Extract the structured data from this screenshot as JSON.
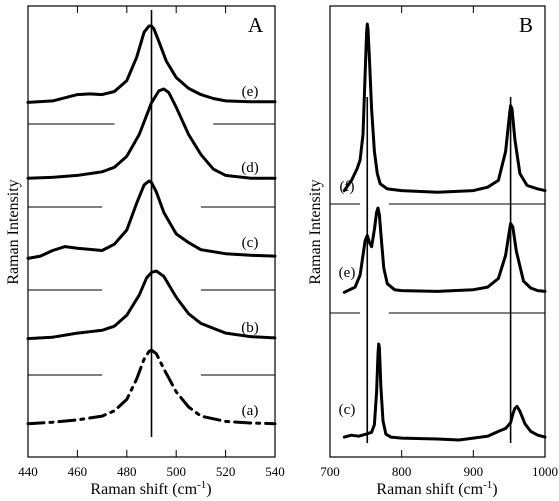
{
  "chart_data": [
    {
      "type": "line",
      "panel_label": "A",
      "xlabel": "Raman shift  (cm",
      "xlabel_sup": "-1",
      "xlabel_close": ")",
      "ylabel": "Raman Intensity",
      "xlim": [
        440,
        540
      ],
      "xticks": [
        440,
        460,
        480,
        500,
        520,
        540
      ],
      "marker_x": 490,
      "baselines": [
        {
          "segments": [
            [
              440,
              475
            ],
            [
              515,
              540
            ]
          ]
        },
        {
          "segments": [
            [
              440,
              470
            ],
            [
              510,
              540
            ]
          ]
        },
        {
          "segments": [
            [
              440,
              470
            ],
            [
              510,
              540
            ]
          ]
        },
        {
          "segments": [
            [
              440,
              470
            ],
            [
              510,
              540
            ]
          ]
        }
      ],
      "series": [
        {
          "name": "(e)",
          "style": "solid",
          "x": [
            440,
            450,
            460,
            465,
            470,
            475,
            480,
            484,
            487,
            489,
            490,
            491,
            493,
            496,
            500,
            505,
            510,
            515,
            520,
            530,
            540
          ],
          "y": [
            0.02,
            0.04,
            0.12,
            0.13,
            0.12,
            0.16,
            0.3,
            0.6,
            0.92,
            1.0,
            1.0,
            0.96,
            0.8,
            0.55,
            0.34,
            0.2,
            0.12,
            0.07,
            0.04,
            0.03,
            0.03
          ]
        },
        {
          "name": "(d)",
          "style": "dotted",
          "x": [
            440,
            450,
            460,
            470,
            475,
            480,
            485,
            490,
            493,
            495,
            497,
            500,
            505,
            510,
            515,
            520,
            530,
            540
          ],
          "y": [
            0.02,
            0.03,
            0.05,
            0.09,
            0.14,
            0.26,
            0.5,
            0.85,
            0.98,
            1.0,
            0.96,
            0.8,
            0.5,
            0.28,
            0.12,
            0.05,
            0.02,
            0.02
          ]
        },
        {
          "name": "(c)",
          "style": "solid",
          "x": [
            440,
            445,
            450,
            455,
            460,
            470,
            475,
            480,
            484,
            487,
            489,
            490,
            492,
            495,
            500,
            505,
            510,
            520,
            530,
            540
          ],
          "y": [
            0.02,
            0.05,
            0.12,
            0.17,
            0.15,
            0.12,
            0.2,
            0.38,
            0.72,
            0.95,
            1.0,
            0.98,
            0.86,
            0.6,
            0.33,
            0.22,
            0.13,
            0.08,
            0.06,
            0.05
          ]
        },
        {
          "name": "(b)",
          "style": "dotted",
          "x": [
            440,
            450,
            460,
            470,
            475,
            480,
            485,
            488,
            490,
            492,
            495,
            500,
            505,
            510,
            520,
            530,
            540
          ],
          "y": [
            0.02,
            0.04,
            0.1,
            0.14,
            0.2,
            0.36,
            0.65,
            0.9,
            0.98,
            1.0,
            0.92,
            0.62,
            0.38,
            0.24,
            0.1,
            0.05,
            0.03
          ]
        },
        {
          "name": "(a)",
          "style": "dashdot",
          "x": [
            440,
            450,
            460,
            470,
            475,
            480,
            484,
            487,
            489,
            490,
            492,
            495,
            500,
            505,
            510,
            520,
            530,
            540
          ],
          "y": [
            0.03,
            0.05,
            0.08,
            0.13,
            0.2,
            0.35,
            0.62,
            0.88,
            0.98,
            1.0,
            0.95,
            0.75,
            0.45,
            0.25,
            0.13,
            0.06,
            0.04,
            0.03
          ]
        }
      ]
    },
    {
      "type": "line",
      "panel_label": "B",
      "xlabel": "Raman shift  (cm",
      "xlabel_sup": "-1",
      "xlabel_close": ")",
      "ylabel": "Raman Intensity",
      "xlim": [
        700,
        1000
      ],
      "xticks": [
        700,
        800,
        900,
        1000
      ],
      "marker_x": [
        752,
        952
      ],
      "baselines": [
        {
          "segments": [
            [
              700,
              742
            ],
            [
              782,
              1000
            ]
          ]
        },
        {
          "segments": [
            [
              700,
              742
            ],
            [
              782,
              1000
            ]
          ]
        }
      ],
      "series": [
        {
          "name": "(f)",
          "x": [
            720,
            730,
            738,
            742,
            746,
            749,
            751,
            752,
            753,
            755,
            758,
            762,
            766,
            770,
            780,
            800,
            850,
            900,
            920,
            935,
            945,
            950,
            952,
            954,
            958,
            965,
            975,
            990,
            1000
          ],
          "y": [
            0.02,
            0.08,
            0.15,
            0.2,
            0.35,
            0.7,
            0.95,
            1.0,
            0.97,
            0.8,
            0.5,
            0.25,
            0.12,
            0.06,
            0.03,
            0.02,
            0.01,
            0.02,
            0.04,
            0.08,
            0.25,
            0.45,
            0.52,
            0.5,
            0.32,
            0.12,
            0.05,
            0.03,
            0.02
          ]
        },
        {
          "name": "(e)",
          "x": [
            720,
            735,
            742,
            746,
            749,
            752,
            755,
            758,
            762,
            765,
            767,
            769,
            772,
            775,
            780,
            790,
            800,
            850,
            900,
            920,
            935,
            945,
            950,
            952,
            955,
            960,
            970,
            980,
            990,
            1000
          ],
          "y": [
            0.02,
            0.08,
            0.22,
            0.45,
            0.62,
            0.68,
            0.6,
            0.55,
            0.75,
            0.95,
            1.0,
            0.92,
            0.6,
            0.3,
            0.12,
            0.05,
            0.04,
            0.03,
            0.05,
            0.08,
            0.18,
            0.45,
            0.72,
            0.82,
            0.78,
            0.5,
            0.15,
            0.07,
            0.04,
            0.03
          ]
        },
        {
          "name": "(c)",
          "x": [
            720,
            730,
            740,
            750,
            758,
            762,
            765,
            767,
            768,
            769,
            771,
            774,
            778,
            785,
            800,
            850,
            880,
            900,
            920,
            935,
            945,
            952,
            955,
            958,
            961,
            965,
            972,
            980,
            990,
            1000
          ],
          "y": [
            0.03,
            0.05,
            0.04,
            0.06,
            0.08,
            0.16,
            0.5,
            0.9,
            1.0,
            0.96,
            0.55,
            0.2,
            0.06,
            0.03,
            0.02,
            0.01,
            0.0,
            0.02,
            0.04,
            0.09,
            0.12,
            0.18,
            0.27,
            0.33,
            0.35,
            0.3,
            0.17,
            0.09,
            0.05,
            0.03
          ]
        }
      ]
    }
  ]
}
